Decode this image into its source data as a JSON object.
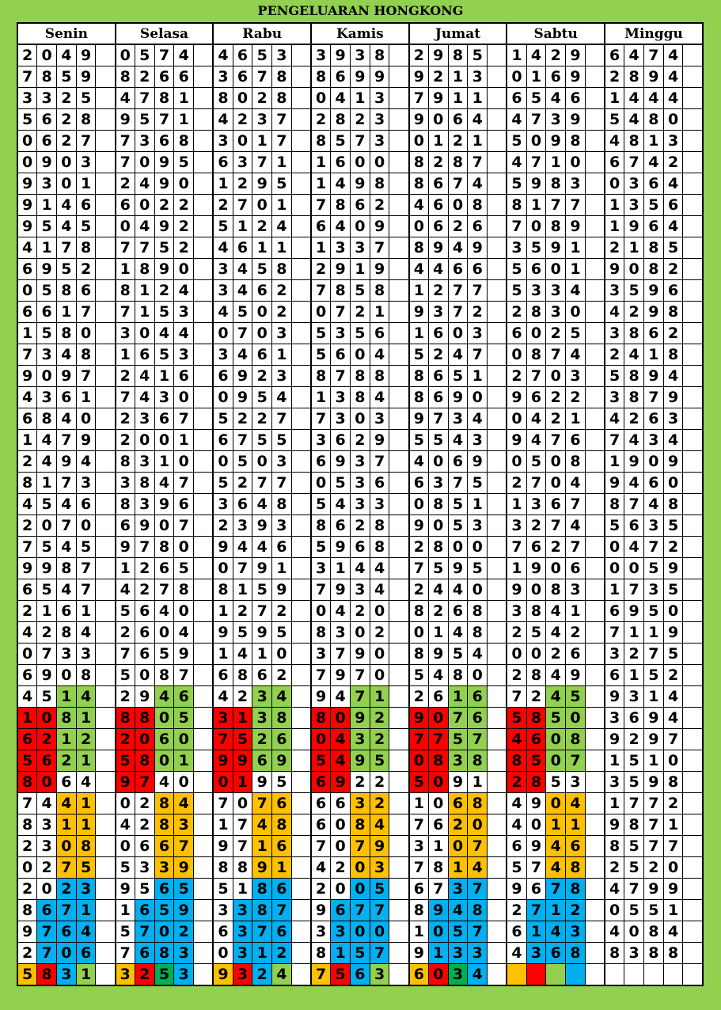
{
  "title": "PENGELUARAN HONGKONG",
  "colors": {
    "w": "#ffffff",
    "r": "#ff0000",
    "g": "#92d050",
    "o": "#ffc000",
    "b": "#00b0f0",
    "d": "#00b050",
    "background": "#92d050"
  },
  "days": [
    "Senin",
    "Selasa",
    "Rabu",
    "Kamis",
    "Jumat",
    "Sabtu",
    "Minggu"
  ],
  "rows": [
    {
      "values": [
        "2049",
        "0574",
        "4653",
        "3938",
        "2985",
        "1429",
        "6474"
      ]
    },
    {
      "values": [
        "7859",
        "8266",
        "3678",
        "8699",
        "9213",
        "0169",
        "2894"
      ]
    },
    {
      "values": [
        "3325",
        "4781",
        "8028",
        "0413",
        "7911",
        "6546",
        "1444"
      ]
    },
    {
      "values": [
        "5628",
        "9571",
        "4237",
        "2823",
        "9064",
        "4739",
        "5480"
      ]
    },
    {
      "values": [
        "0627",
        "7368",
        "3017",
        "8573",
        "0121",
        "5098",
        "4813"
      ]
    },
    {
      "values": [
        "0903",
        "7095",
        "6371",
        "1600",
        "8287",
        "4710",
        "6742"
      ]
    },
    {
      "values": [
        "9301",
        "2490",
        "1295",
        "1498",
        "8674",
        "5983",
        "0364"
      ]
    },
    {
      "values": [
        "9146",
        "6022",
        "2701",
        "7862",
        "4608",
        "8177",
        "1356"
      ]
    },
    {
      "values": [
        "9545",
        "0492",
        "5124",
        "6409",
        "0626",
        "7089",
        "1964"
      ]
    },
    {
      "values": [
        "4178",
        "7752",
        "4611",
        "1337",
        "8949",
        "3591",
        "2185"
      ]
    },
    {
      "values": [
        "6952",
        "1890",
        "3458",
        "2919",
        "4466",
        "5601",
        "9082"
      ]
    },
    {
      "values": [
        "0586",
        "8124",
        "3462",
        "7858",
        "1277",
        "5334",
        "3596"
      ]
    },
    {
      "values": [
        "6617",
        "7153",
        "4502",
        "0721",
        "9372",
        "2830",
        "4298"
      ]
    },
    {
      "values": [
        "1580",
        "3044",
        "0703",
        "5356",
        "1603",
        "6025",
        "3862"
      ]
    },
    {
      "values": [
        "7348",
        "1653",
        "3461",
        "5604",
        "5247",
        "0874",
        "2418"
      ]
    },
    {
      "values": [
        "9097",
        "2416",
        "6923",
        "8788",
        "8651",
        "2703",
        "5894"
      ]
    },
    {
      "values": [
        "4361",
        "7430",
        "0954",
        "1384",
        "8690",
        "9622",
        "3879"
      ]
    },
    {
      "values": [
        "6840",
        "2367",
        "5227",
        "7303",
        "9734",
        "0421",
        "4263"
      ]
    },
    {
      "values": [
        "1479",
        "2001",
        "6755",
        "3629",
        "5543",
        "9476",
        "7434"
      ]
    },
    {
      "values": [
        "2494",
        "8310",
        "0503",
        "6937",
        "4069",
        "0508",
        "1909"
      ]
    },
    {
      "values": [
        "8173",
        "3847",
        "5277",
        "0536",
        "6375",
        "2704",
        "9460"
      ]
    },
    {
      "values": [
        "4546",
        "8396",
        "3648",
        "5433",
        "0851",
        "1367",
        "8748"
      ]
    },
    {
      "values": [
        "2070",
        "6907",
        "2393",
        "8628",
        "9053",
        "3274",
        "5635"
      ]
    },
    {
      "values": [
        "7545",
        "9780",
        "9446",
        "5968",
        "2800",
        "7627",
        "0472"
      ]
    },
    {
      "values": [
        "9987",
        "1265",
        "0791",
        "3144",
        "7595",
        "1906",
        "0059"
      ]
    },
    {
      "values": [
        "6547",
        "4278",
        "8159",
        "7934",
        "2440",
        "9083",
        "1735"
      ]
    },
    {
      "values": [
        "2161",
        "5640",
        "1272",
        "0420",
        "8268",
        "3841",
        "6950"
      ]
    },
    {
      "values": [
        "4284",
        "2604",
        "9595",
        "8302",
        "0148",
        "2542",
        "7119"
      ]
    },
    {
      "values": [
        "0733",
        "7659",
        "1410",
        "3790",
        "8954",
        "0026",
        "3275"
      ]
    },
    {
      "values": [
        "6908",
        "5087",
        "6862",
        "7970",
        "5480",
        "2849",
        "6152"
      ]
    },
    {
      "values": [
        "4514",
        "2946",
        "4234",
        "9471",
        "2616",
        "7245",
        "9314"
      ],
      "colors": [
        "wwgg",
        "wwgg",
        "wwgg",
        "wwgg",
        "wwgg",
        "wwgg",
        "wwww"
      ]
    },
    {
      "values": [
        "1081",
        "8805",
        "3138",
        "8092",
        "9076",
        "5850",
        "3694"
      ],
      "colors": [
        "rrgg",
        "rrgg",
        "rrgg",
        "rrgg",
        "rrgg",
        "rrgg",
        "wwww"
      ]
    },
    {
      "values": [
        "6212",
        "2060",
        "7526",
        "0432",
        "7757",
        "4608",
        "9297"
      ],
      "colors": [
        "rrgg",
        "rrgg",
        "rrgg",
        "rrgg",
        "rrgg",
        "rrgg",
        "wwww"
      ]
    },
    {
      "values": [
        "5621",
        "5801",
        "9969",
        "5495",
        "0838",
        "8507",
        "1510"
      ],
      "colors": [
        "rrgg",
        "rrgg",
        "rrgg",
        "rrgg",
        "rrgg",
        "rrgg",
        "wwww"
      ]
    },
    {
      "values": [
        "8064",
        "9740",
        "0195",
        "6922",
        "5091",
        "2853",
        "3598"
      ],
      "colors": [
        "rrww",
        "rrww",
        "rrww",
        "rrww",
        "rrww",
        "rrww",
        "wwww"
      ]
    },
    {
      "values": [
        "7441",
        "0284",
        "7076",
        "6632",
        "1068",
        "4904",
        "1772"
      ],
      "colors": [
        "wwoo",
        "wwoo",
        "wwoo",
        "wwoo",
        "wwoo",
        "wwoo",
        "wwww"
      ]
    },
    {
      "values": [
        "8311",
        "4283",
        "1748",
        "6084",
        "7620",
        "4011",
        "9871"
      ],
      "colors": [
        "wwoo",
        "wwoo",
        "wwoo",
        "wwoo",
        "wwoo",
        "wwoo",
        "wwww"
      ]
    },
    {
      "values": [
        "2308",
        "0667",
        "9716",
        "7079",
        "3107",
        "6946",
        "8577"
      ],
      "colors": [
        "wwoo",
        "wwoo",
        "wwoo",
        "wwoo",
        "wwoo",
        "wwoo",
        "wwww"
      ]
    },
    {
      "values": [
        "0275",
        "5339",
        "8891",
        "4203",
        "7814",
        "5748",
        "2520"
      ],
      "colors": [
        "wwoo",
        "wwoo",
        "wwoo",
        "wwoo",
        "wwoo",
        "wwoo",
        "wwww"
      ]
    },
    {
      "values": [
        "2023",
        "9565",
        "5186",
        "2005",
        "6737",
        "9678",
        "4799"
      ],
      "colors": [
        "wwbb",
        "wwbb",
        "wwbb",
        "wwbb",
        "wwbb",
        "wwbb",
        "wwww"
      ]
    },
    {
      "values": [
        "8671",
        "1659",
        "3387",
        "9677",
        "8948",
        "2712",
        "0551"
      ],
      "colors": [
        "wbbb",
        "wbbb",
        "wbbb",
        "wbbb",
        "wbbb",
        "wbbb",
        "wwww"
      ]
    },
    {
      "values": [
        "9764",
        "5702",
        "6376",
        "3300",
        "1057",
        "6143",
        "4084"
      ],
      "colors": [
        "wbbb",
        "wbbb",
        "wbbb",
        "wbbb",
        "wbbb",
        "wbbb",
        "wwww"
      ]
    },
    {
      "values": [
        "2706",
        "7683",
        "0312",
        "8157",
        "9133",
        "4368",
        "8388"
      ],
      "colors": [
        "wbbb",
        "wbbb",
        "wbbb",
        "wbbb",
        "wbbb",
        "wbbb",
        "wwww"
      ]
    },
    {
      "values": [
        "5831",
        "3253",
        "9324",
        "7563",
        "6034",
        "",
        ""
      ],
      "colors": [
        "orbg",
        "ordb",
        "orbg",
        "orbg",
        "ordb",
        "orgb",
        "wwww"
      ]
    }
  ]
}
